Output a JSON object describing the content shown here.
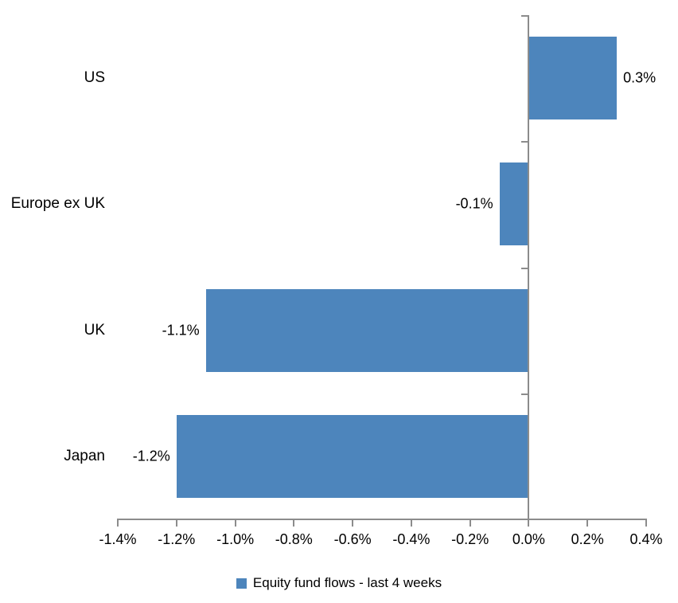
{
  "chart_data": {
    "type": "bar",
    "orientation": "horizontal",
    "title": "",
    "categories": [
      "US",
      "Europe ex UK",
      "UK",
      "Japan"
    ],
    "series": [
      {
        "name": "Equity fund flows - last 4 weeks",
        "values": [
          0.3,
          -0.1,
          -1.1,
          -1.2
        ],
        "data_labels": [
          "0.3%",
          "-0.1%",
          "-1.1%",
          "-1.2%"
        ],
        "color": "#4D85BC"
      }
    ],
    "xlabel": "",
    "ylabel": "",
    "xlim": [
      -1.4,
      0.4
    ],
    "x_tick_step": 0.2,
    "x_tick_labels": [
      "-1.4%",
      "-1.2%",
      "-1.0%",
      "-0.8%",
      "-0.6%",
      "-0.4%",
      "-0.2%",
      "0.0%",
      "0.2%",
      "0.4%"
    ],
    "grid": false,
    "legend_position": "bottom",
    "axis_color": "#8C8C8C",
    "text_color": "#000000",
    "background_color": "#FFFFFF"
  },
  "legend": {
    "label": "Equity fund flows - last 4 weeks"
  }
}
